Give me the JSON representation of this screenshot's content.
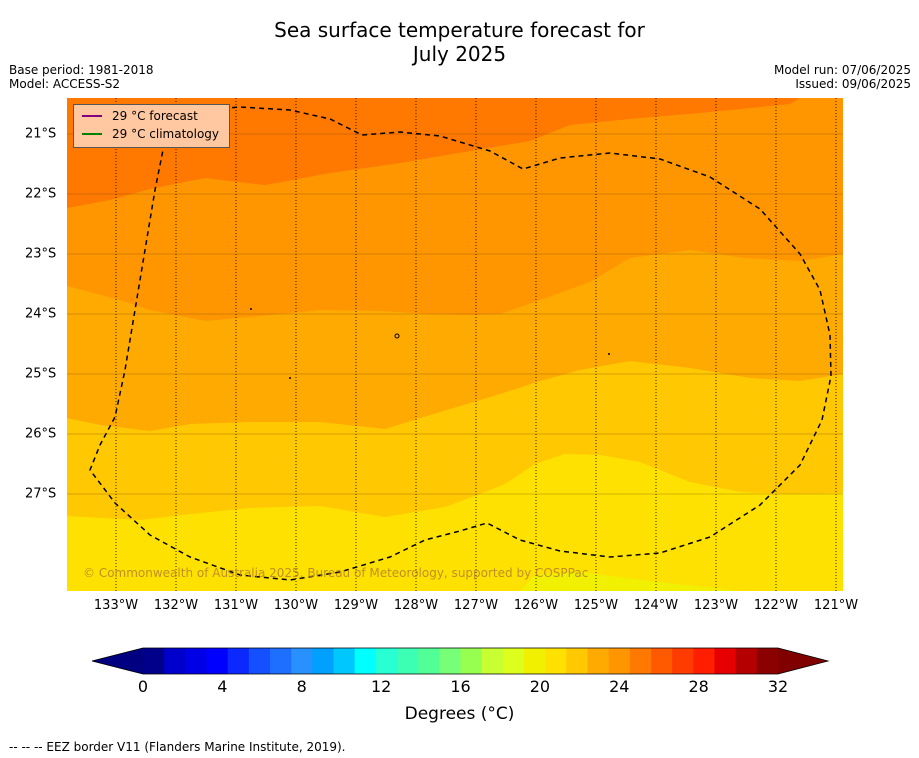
{
  "title_line1": "Sea surface temperature forecast for",
  "title_line2": "July 2025",
  "meta_left": {
    "base_period": "Base period: 1981-2018",
    "model": "Model: ACCESS-S2"
  },
  "meta_right": {
    "model_run": "Model run: 07/06/2025",
    "issued": "Issued: 09/06/2025"
  },
  "legend": {
    "forecast_label": "29 °C  forecast",
    "forecast_color": "#800080",
    "climatology_label": "29 °C  climatology",
    "climatology_color": "#008000"
  },
  "copyright": "© Commonwealth of Australia 2025, Bureau of Meteorology, supported by COSPPac",
  "lon_labels": [
    "133°W",
    "132°W",
    "131°W",
    "130°W",
    "129°W",
    "128°W",
    "127°W",
    "126°W",
    "125°W",
    "124°W",
    "123°W",
    "122°W",
    "121°W"
  ],
  "lat_labels": [
    "21°S",
    "22°S",
    "23°S",
    "24°S",
    "25°S",
    "26°S",
    "27°S"
  ],
  "colorbar": {
    "tick_labels": [
      "0",
      "4",
      "8",
      "12",
      "16",
      "20",
      "24",
      "28",
      "32"
    ],
    "title": "Degrees (°C)",
    "colors": [
      "#00008b",
      "#0000cd",
      "#0000e6",
      "#0000ff",
      "#0a28ff",
      "#1450ff",
      "#1e6eff",
      "#2890ff",
      "#00a0ff",
      "#00c8ff",
      "#00ffff",
      "#28ffd2",
      "#3cffb4",
      "#50ff96",
      "#78ff78",
      "#96ff50",
      "#c8ff32",
      "#dcff1e",
      "#f0f000",
      "#ffe100",
      "#ffc800",
      "#ffaa00",
      "#ff9600",
      "#ff7800",
      "#ff5a00",
      "#ff3c00",
      "#ff1e00",
      "#e60000",
      "#b40000",
      "#8b0000"
    ],
    "under_color": "#000080",
    "over_color": "#800000"
  },
  "footnote": "--  --  -- EEZ border V11 (Flanders Marine Institute, 2019)."
}
